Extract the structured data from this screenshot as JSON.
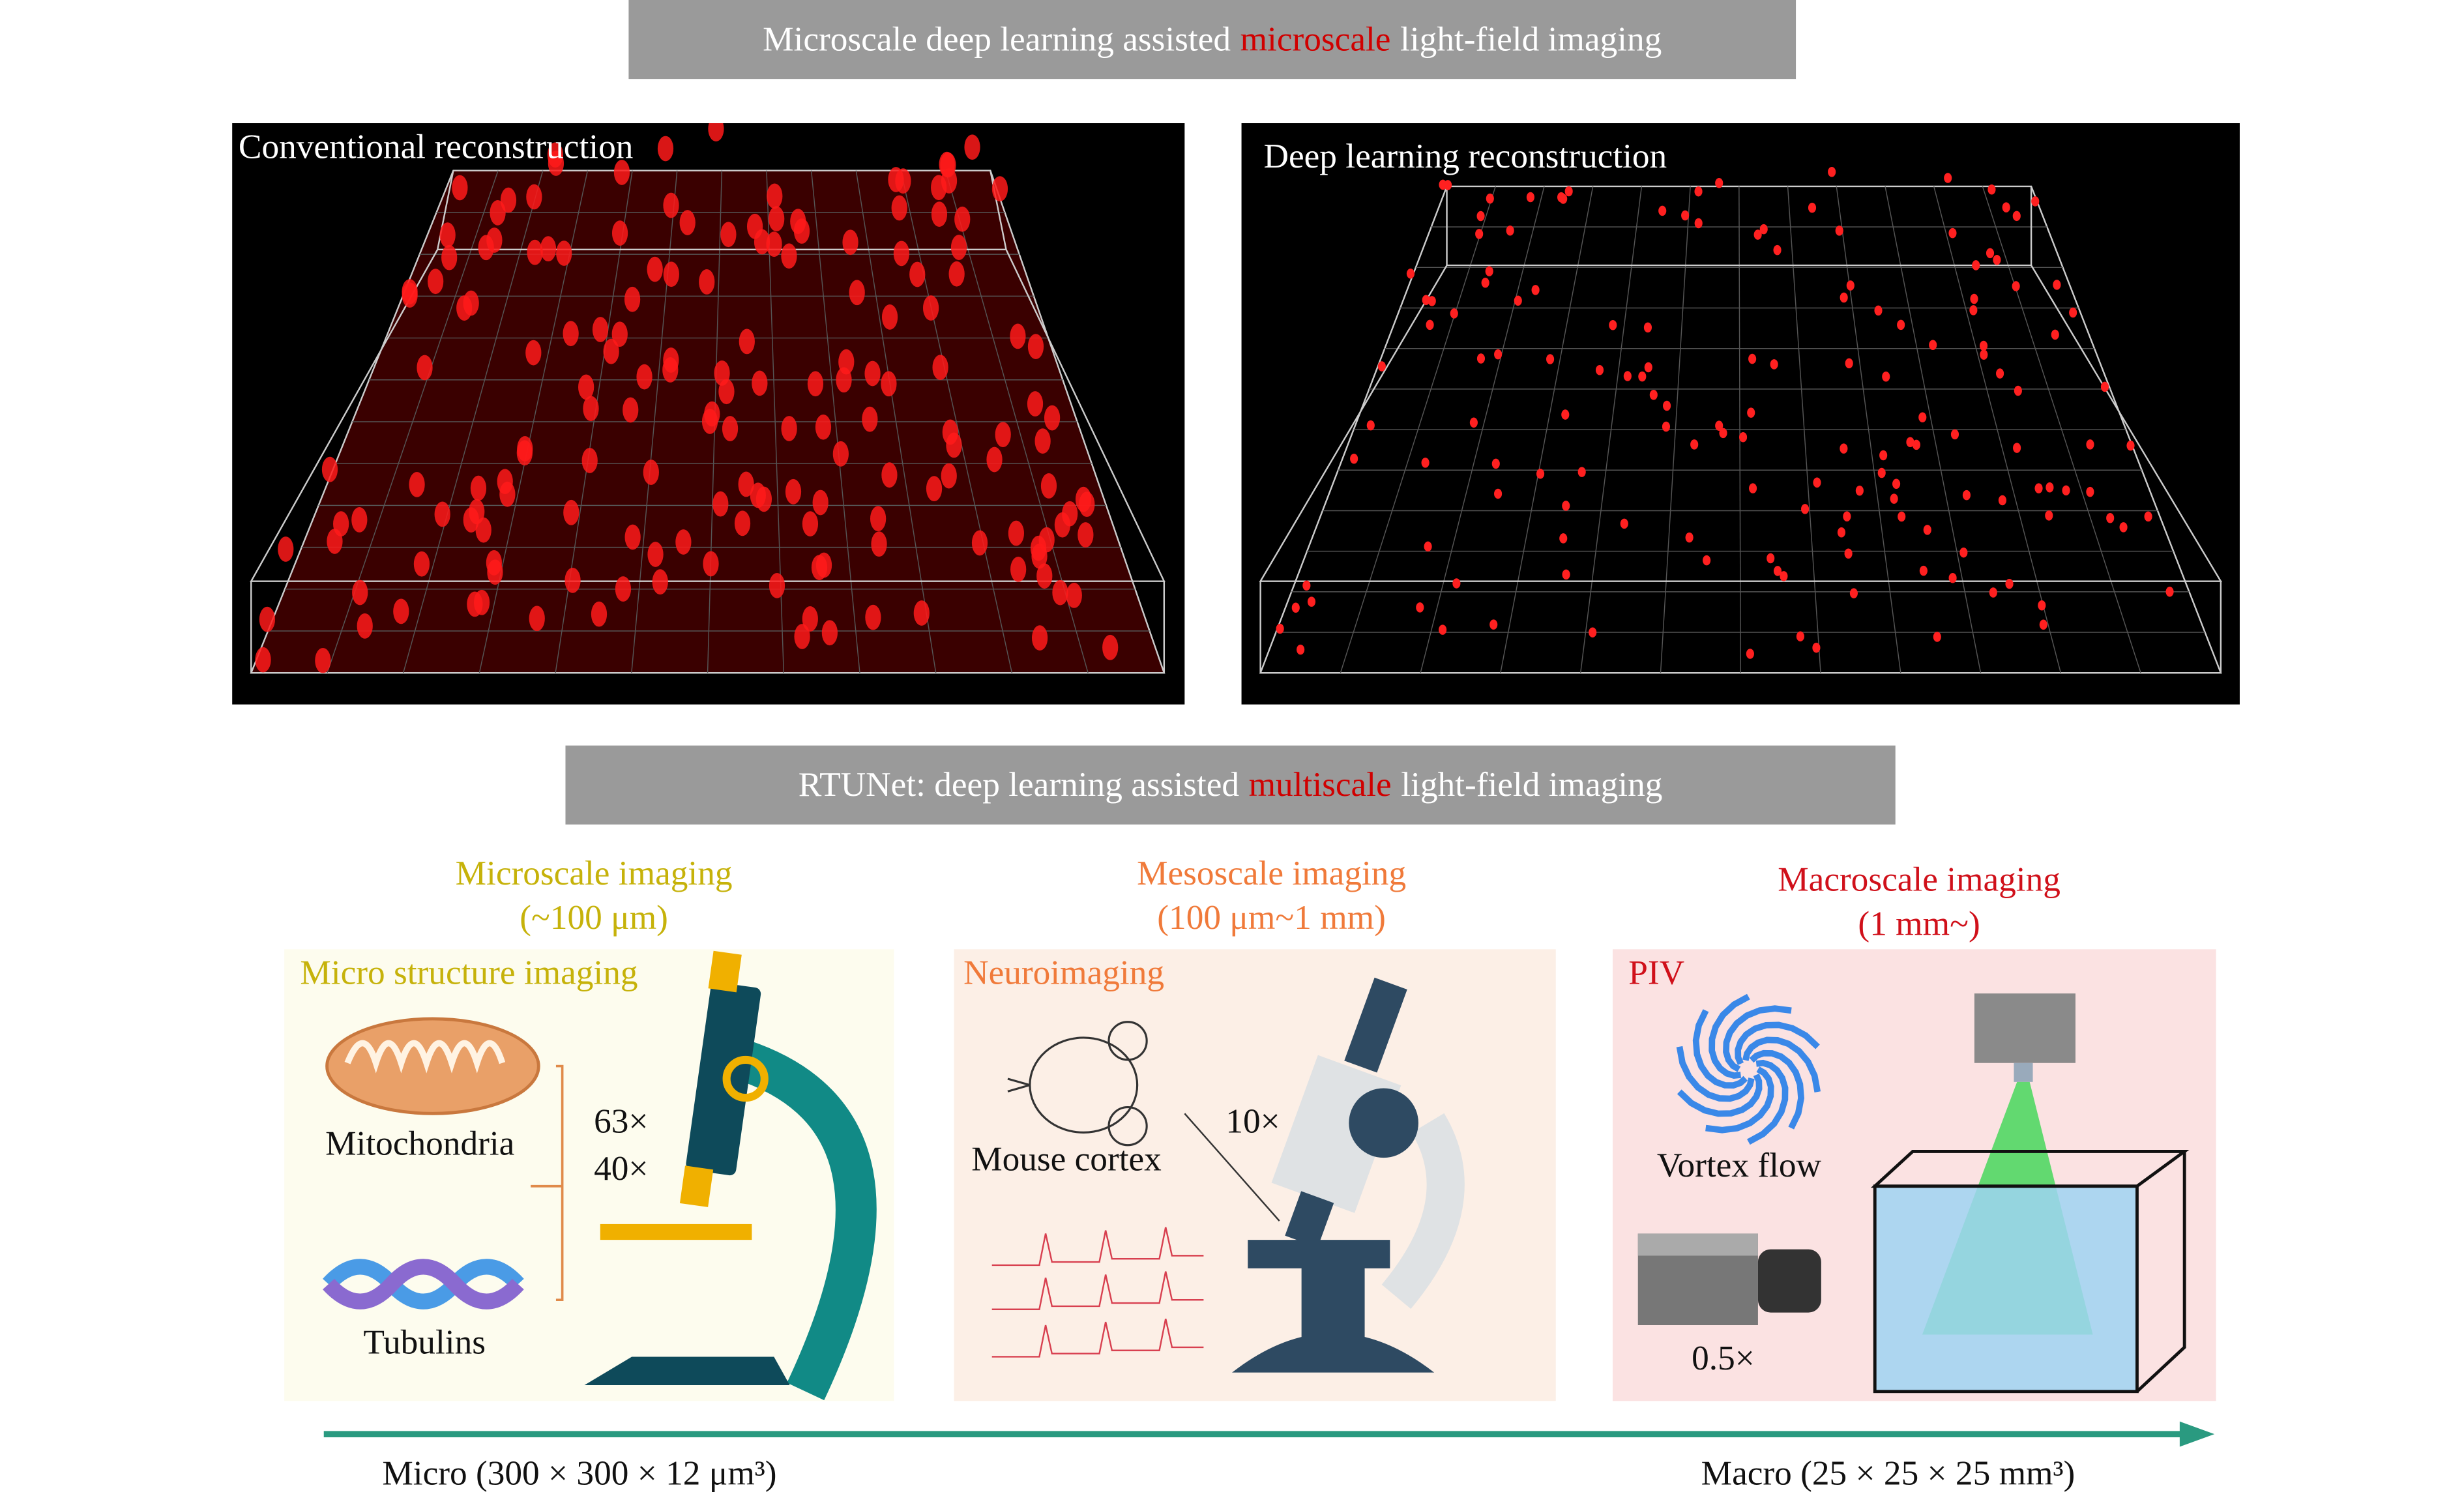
{
  "top_banner": {
    "prefix": "Microscale deep learning assisted",
    "highlight": "microscale",
    "suffix": "light-field imaging"
  },
  "panels": {
    "conventional": {
      "label": "Conventional reconstruction"
    },
    "deep_learning": {
      "label": "Deep learning reconstruction"
    }
  },
  "bottom_banner": {
    "prefix": "RTUNet:  deep learning assisted",
    "highlight": "multiscale",
    "suffix": "light-field imaging"
  },
  "scales": [
    {
      "title": "Microscale imaging",
      "range": "(~100 μm)",
      "color": "#c6b20a"
    },
    {
      "title": "Mesoscale imaging",
      "range": "(100 μm~1 mm)",
      "color": "#f07a3a"
    },
    {
      "title": "Macroscale imaging",
      "range": "(1 mm~)",
      "color": "#d0101a"
    }
  ],
  "cards": {
    "micro": {
      "title": "Micro structure imaging",
      "mitochondria": "Mitochondria",
      "tubulins": "Tubulins",
      "mag1": "63×",
      "mag2": "40×",
      "bg": "#fdfcee"
    },
    "meso": {
      "title": "Neuroimaging",
      "mouse": "Mouse cortex",
      "mag": "10×",
      "bg": "#fcefe6"
    },
    "macro": {
      "title": "PIV",
      "vortex": "Vortex flow",
      "mag": "0.5×",
      "bg": "#fbe2e2"
    }
  },
  "axis": {
    "left": "Micro (300 × 300 × 12 μm³)",
    "right": "Macro (25 × 25 × 25 mm³)",
    "color": "#2a9a80"
  },
  "highlight_color": "#d00000"
}
